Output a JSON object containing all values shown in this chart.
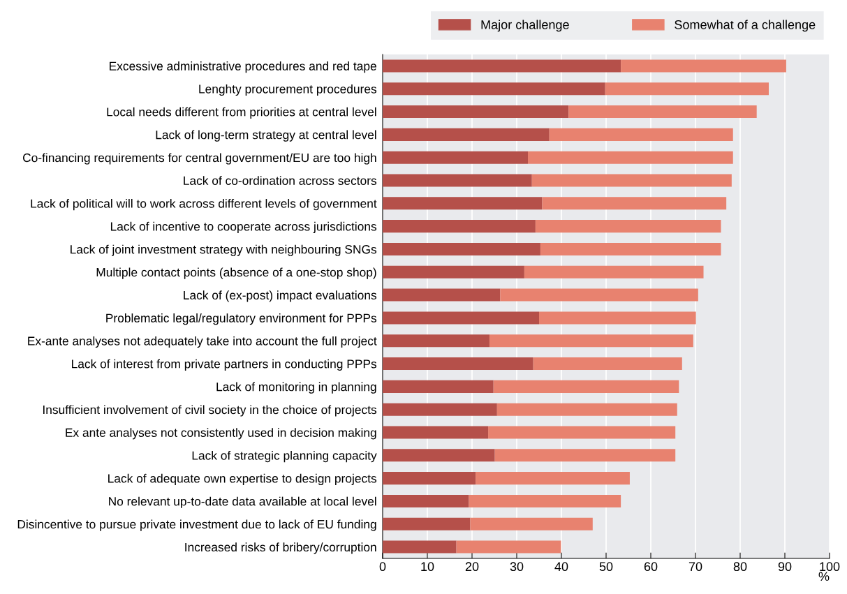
{
  "chart_data": {
    "type": "bar",
    "orientation": "horizontal",
    "stacked": true,
    "xlabel": "%",
    "categories": [
      "Excessive administrative procedures and red tape",
      "Lenghty procurement procedures",
      "Local needs different from priorities at central level",
      "Lack of long-term strategy at central level",
      "Co-financing requirements for central government/EU are too high",
      "Lack of co-ordination across sectors",
      "Lack of political will to work across different levels of government",
      "Lack of incentive to cooperate across jurisdictions",
      "Lack of joint investment strategy with neighbouring SNGs",
      "Multiple contact points (absence of a one-stop shop)",
      "Lack of (ex-post) impact evaluations",
      "Problematic legal/regulatory environment for PPPs",
      "Ex-ante analyses not adequately take into account the full project",
      "Lack of interest from private partners in conducting PPPs",
      "Lack of monitoring in planning",
      "Insufficient involvement of civil society in the choice of projects",
      "Ex ante analyses not consistently used in decision making",
      "Lack of strategic planning capacity",
      "Lack of adequate own expertise to design projects",
      "No relevant up-to-date data available at local level",
      "Disincentive to pursue private investment due to lack of EU funding",
      "Increased risks of bribery/corruption"
    ],
    "series": [
      {
        "name": "Major challenge",
        "color": "#b5504a",
        "values": [
          53.3,
          49.8,
          41.6,
          37.3,
          32.5,
          33.4,
          35.7,
          34.2,
          35.3,
          31.7,
          26.3,
          35.0,
          23.9,
          33.7,
          24.8,
          25.6,
          23.6,
          25.1,
          20.8,
          19.3,
          19.6,
          16.5
        ]
      },
      {
        "name": "Somewhat of a challenge",
        "color": "#e8826f",
        "values": [
          37.0,
          36.6,
          42.1,
          41.1,
          45.9,
          44.7,
          41.2,
          41.5,
          40.4,
          40.1,
          44.3,
          35.1,
          45.6,
          33.3,
          41.5,
          40.3,
          41.9,
          40.4,
          34.5,
          34.0,
          27.4,
          23.4
        ]
      }
    ],
    "xlim": [
      0,
      100
    ],
    "xticks": [
      0,
      10,
      20,
      30,
      40,
      50,
      60,
      70,
      80,
      90,
      100
    ],
    "grid": "x",
    "legend": "top right"
  }
}
